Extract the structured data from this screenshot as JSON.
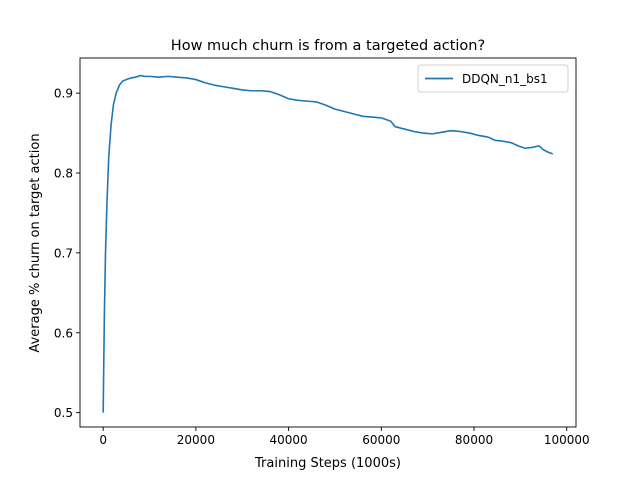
{
  "chart_data": {
    "type": "line",
    "title": "How much churn is from a targeted action?",
    "xlabel": "Training Steps (1000s)",
    "ylabel": "Average % churn on target action",
    "xlim": [
      -5000,
      102000
    ],
    "ylim": [
      0.482,
      0.944
    ],
    "xticks": [
      0,
      20000,
      40000,
      60000,
      80000,
      100000
    ],
    "xtick_labels": [
      "0",
      "20000",
      "40000",
      "60000",
      "80000",
      "100000"
    ],
    "yticks": [
      0.5,
      0.6,
      0.7,
      0.8,
      0.9
    ],
    "ytick_labels": [
      "0.5",
      "0.6",
      "0.7",
      "0.8",
      "0.9"
    ],
    "grid": false,
    "legend_position": "top-right",
    "series": [
      {
        "name": "DDQN_n1_bs1",
        "color": "#1f77b4",
        "points": [
          [
            0,
            0.5
          ],
          [
            250,
            0.62
          ],
          [
            500,
            0.7
          ],
          [
            800,
            0.76
          ],
          [
            1200,
            0.82
          ],
          [
            1700,
            0.86
          ],
          [
            2200,
            0.885
          ],
          [
            2800,
            0.9
          ],
          [
            3500,
            0.91
          ],
          [
            4200,
            0.915
          ],
          [
            5000,
            0.917
          ],
          [
            6000,
            0.919
          ],
          [
            7000,
            0.92
          ],
          [
            8000,
            0.922
          ],
          [
            9000,
            0.921
          ],
          [
            10000,
            0.921
          ],
          [
            12000,
            0.92
          ],
          [
            14000,
            0.921
          ],
          [
            16000,
            0.92
          ],
          [
            18000,
            0.919
          ],
          [
            20000,
            0.917
          ],
          [
            22000,
            0.913
          ],
          [
            24000,
            0.91
          ],
          [
            26000,
            0.908
          ],
          [
            28000,
            0.906
          ],
          [
            30000,
            0.904
          ],
          [
            32000,
            0.903
          ],
          [
            34000,
            0.903
          ],
          [
            36000,
            0.902
          ],
          [
            38000,
            0.898
          ],
          [
            40000,
            0.893
          ],
          [
            42000,
            0.891
          ],
          [
            44000,
            0.89
          ],
          [
            46000,
            0.889
          ],
          [
            48000,
            0.885
          ],
          [
            50000,
            0.88
          ],
          [
            52000,
            0.877
          ],
          [
            54000,
            0.874
          ],
          [
            56000,
            0.871
          ],
          [
            58000,
            0.87
          ],
          [
            60000,
            0.869
          ],
          [
            62000,
            0.865
          ],
          [
            63000,
            0.858
          ],
          [
            65000,
            0.855
          ],
          [
            67000,
            0.852
          ],
          [
            69000,
            0.85
          ],
          [
            71000,
            0.849
          ],
          [
            73000,
            0.851
          ],
          [
            75000,
            0.853
          ],
          [
            77000,
            0.852
          ],
          [
            79000,
            0.85
          ],
          [
            81000,
            0.847
          ],
          [
            83000,
            0.845
          ],
          [
            84500,
            0.841
          ],
          [
            86000,
            0.84
          ],
          [
            88000,
            0.838
          ],
          [
            89500,
            0.834
          ],
          [
            91000,
            0.831
          ],
          [
            92500,
            0.832
          ],
          [
            94000,
            0.834
          ],
          [
            95000,
            0.829
          ],
          [
            96000,
            0.826
          ],
          [
            97000,
            0.824
          ]
        ]
      }
    ]
  }
}
